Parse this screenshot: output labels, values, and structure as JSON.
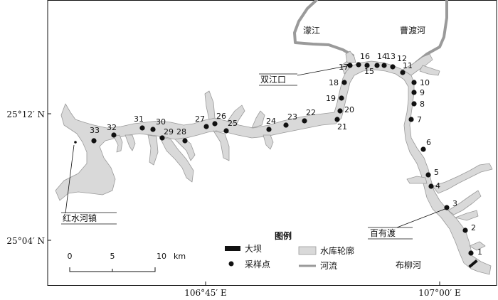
{
  "map": {
    "rivers": {
      "mengjiang": "濛江",
      "caoduhe": "曹渡河",
      "buliuhe": "布柳河"
    },
    "places": {
      "shuangjiangkou": "双江口",
      "baiyoudu": "百有渡",
      "hongshuihe_town": "红水河镇"
    },
    "sample_point_labels": [
      "1",
      "2",
      "3",
      "4",
      "5",
      "6",
      "7",
      "8",
      "9",
      "10",
      "11",
      "12",
      "13",
      "14",
      "15",
      "16",
      "17",
      "18",
      "19",
      "20",
      "21",
      "22",
      "23",
      "24",
      "25",
      "26",
      "27",
      "28",
      "29",
      "30",
      "31",
      "32",
      "33"
    ],
    "lat_labels": [
      "25°12′ N",
      "25°04′ N"
    ],
    "lon_labels": [
      "106°45′ E",
      "107°00′ E"
    ],
    "legend": {
      "title": "图例",
      "dam": "大坝",
      "sample_point": "采样点",
      "reservoir": "水库轮廓",
      "river": "河流"
    },
    "scale": {
      "ticks": [
        "0",
        "5",
        "10"
      ],
      "unit": "km"
    },
    "colors": {
      "reservoir_fill": "#d9d9d9",
      "reservoir_stroke": "#9a9a9a",
      "river": "#9a9a9a",
      "point": "#111111",
      "frame": "#111111"
    }
  }
}
